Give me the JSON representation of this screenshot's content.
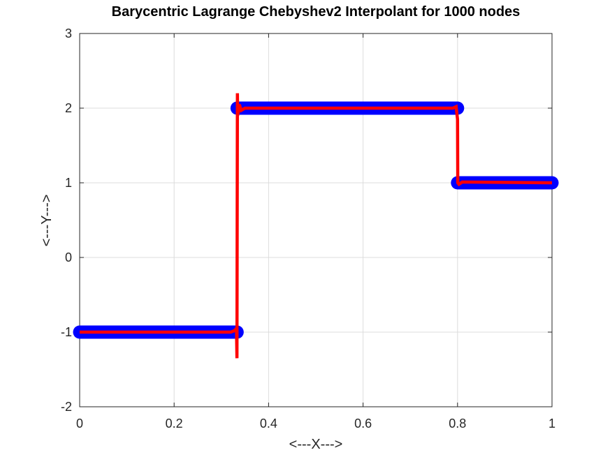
{
  "chart_data": {
    "type": "line",
    "title": "Barycentric Lagrange Chebyshev2 Interpolant for 1000 nodes",
    "xlabel": "<---X--->",
    "ylabel": "<---Y--->",
    "xlim": [
      0,
      1
    ],
    "ylim": [
      -2,
      3
    ],
    "xticks": [
      0,
      0.2,
      0.4,
      0.6,
      0.8,
      1
    ],
    "xtick_labels": [
      "0",
      "0.2",
      "0.4",
      "0.6",
      "0.8",
      "1"
    ],
    "yticks": [
      -2,
      -1,
      0,
      1,
      2,
      3
    ],
    "ytick_labels": [
      "-2",
      "-1",
      "0",
      "1",
      "2",
      "3"
    ],
    "grid": true,
    "legend": "none",
    "series": [
      {
        "role": "data nodes (piecewise constant)",
        "style": "markers",
        "color": "#0000ff",
        "segments": [
          {
            "x": [
              0,
              0.3333
            ],
            "y": -1
          },
          {
            "x": [
              0.3333,
              0.8
            ],
            "y": 2
          },
          {
            "x": [
              0.8,
              1.0
            ],
            "y": 1
          }
        ]
      },
      {
        "role": "interpolant",
        "style": "line",
        "color": "#ff0000",
        "points": [
          [
            0,
            -1
          ],
          [
            0.32,
            -1
          ],
          [
            0.328,
            -0.98
          ],
          [
            0.332,
            -0.95
          ],
          [
            0.333,
            -1.35
          ],
          [
            0.3335,
            0.5
          ],
          [
            0.334,
            2.2
          ],
          [
            0.3345,
            1.9
          ],
          [
            0.338,
            2.05
          ],
          [
            0.342,
            1.97
          ],
          [
            0.35,
            2.0
          ],
          [
            0.79,
            2.0
          ],
          [
            0.797,
            2.02
          ],
          [
            0.8,
            1.85
          ],
          [
            0.8005,
            1.0
          ],
          [
            0.803,
            0.98
          ],
          [
            0.81,
            1.01
          ],
          [
            1.0,
            1.0
          ]
        ]
      }
    ]
  }
}
